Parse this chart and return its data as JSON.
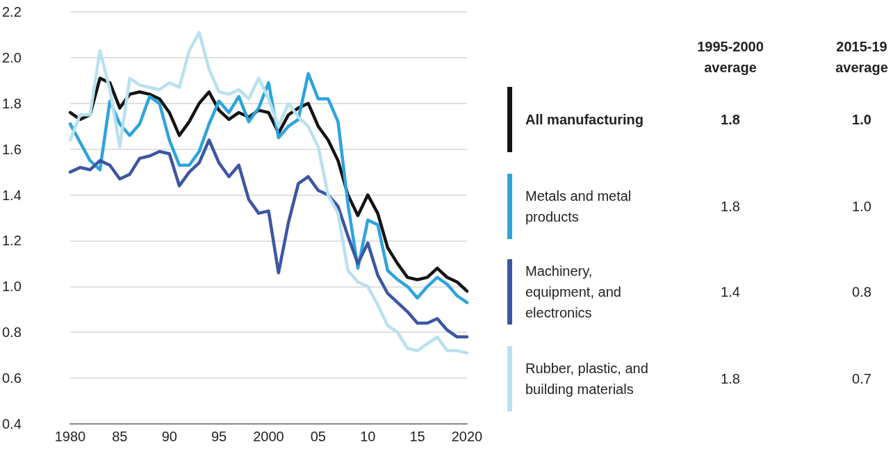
{
  "chart_data": {
    "type": "line",
    "x": [
      1980,
      1981,
      1982,
      1983,
      1984,
      1985,
      1986,
      1987,
      1988,
      1989,
      1990,
      1991,
      1992,
      1993,
      1994,
      1995,
      1996,
      1997,
      1998,
      1999,
      2000,
      2001,
      2002,
      2003,
      2004,
      2005,
      2006,
      2007,
      2008,
      2009,
      2010,
      2011,
      2012,
      2013,
      2014,
      2015,
      2016,
      2017,
      2018,
      2019,
      2020
    ],
    "series": [
      {
        "name": "All manufacturing",
        "color": "#141414",
        "values": [
          1.76,
          1.73,
          1.75,
          1.91,
          1.89,
          1.78,
          1.84,
          1.85,
          1.84,
          1.82,
          1.76,
          1.66,
          1.72,
          1.8,
          1.85,
          1.77,
          1.73,
          1.76,
          1.74,
          1.77,
          1.76,
          1.67,
          1.75,
          1.78,
          1.8,
          1.7,
          1.64,
          1.55,
          1.4,
          1.31,
          1.4,
          1.32,
          1.17,
          1.1,
          1.04,
          1.03,
          1.04,
          1.08,
          1.04,
          1.02,
          0.98
        ]
      },
      {
        "name": "Metals and metal products",
        "color": "#2ea3dc",
        "values": [
          1.71,
          1.63,
          1.55,
          1.51,
          1.81,
          1.71,
          1.66,
          1.71,
          1.83,
          1.8,
          1.64,
          1.53,
          1.53,
          1.59,
          1.71,
          1.81,
          1.76,
          1.83,
          1.72,
          1.78,
          1.89,
          1.65,
          1.7,
          1.73,
          1.93,
          1.82,
          1.82,
          1.72,
          1.36,
          1.08,
          1.29,
          1.27,
          1.07,
          1.03,
          1.0,
          0.95,
          1.0,
          1.04,
          1.01,
          0.96,
          0.93
        ]
      },
      {
        "name": "Machinery, equipment, and electronics",
        "color": "#3d55a3",
        "values": [
          1.5,
          1.52,
          1.51,
          1.55,
          1.53,
          1.47,
          1.49,
          1.56,
          1.57,
          1.59,
          1.58,
          1.44,
          1.5,
          1.54,
          1.64,
          1.54,
          1.48,
          1.53,
          1.38,
          1.32,
          1.33,
          1.06,
          1.28,
          1.45,
          1.48,
          1.42,
          1.4,
          1.35,
          1.22,
          1.1,
          1.19,
          1.05,
          0.97,
          0.93,
          0.89,
          0.84,
          0.84,
          0.86,
          0.81,
          0.78,
          0.78
        ]
      },
      {
        "name": "Rubber, plastic, and building materials",
        "color": "#b9e1ef",
        "values": [
          1.64,
          1.75,
          1.75,
          2.03,
          1.86,
          1.61,
          1.91,
          1.88,
          1.87,
          1.86,
          1.89,
          1.87,
          2.03,
          2.11,
          1.95,
          1.85,
          1.84,
          1.86,
          1.82,
          1.91,
          1.82,
          1.7,
          1.8,
          1.74,
          1.7,
          1.61,
          1.4,
          1.32,
          1.07,
          1.02,
          1.0,
          0.92,
          0.83,
          0.8,
          0.73,
          0.72,
          0.75,
          0.78,
          0.72,
          0.72,
          0.71
        ]
      }
    ],
    "xlim": [
      1980,
      2020
    ],
    "xticks": [
      1980,
      {
        "value": 1985,
        "label": "85"
      },
      {
        "value": 1990,
        "label": "90"
      },
      {
        "value": 1995,
        "label": "95"
      },
      2000,
      {
        "value": 2005,
        "label": "05"
      },
      {
        "value": 2010,
        "label": "10"
      },
      {
        "value": 2015,
        "label": "15"
      },
      2020
    ],
    "ylim": [
      0.4,
      2.2
    ],
    "yticks": [
      0.4,
      0.6,
      0.8,
      {
        "value": 1,
        "label": "1.0"
      },
      1.2,
      1.4,
      1.6,
      1.8,
      {
        "value": 2,
        "label": "2.0"
      },
      2.2
    ],
    "annotations": [
      "1995-2000\naverage",
      "2015-19\naverage",
      "1.8",
      "1.0",
      "1.8",
      "1.0",
      "1.4",
      "0.8",
      "1.8",
      "0.7"
    ],
    "grid": "y",
    "legend": "right",
    "marker": "none",
    "line_style": "solid"
  }
}
